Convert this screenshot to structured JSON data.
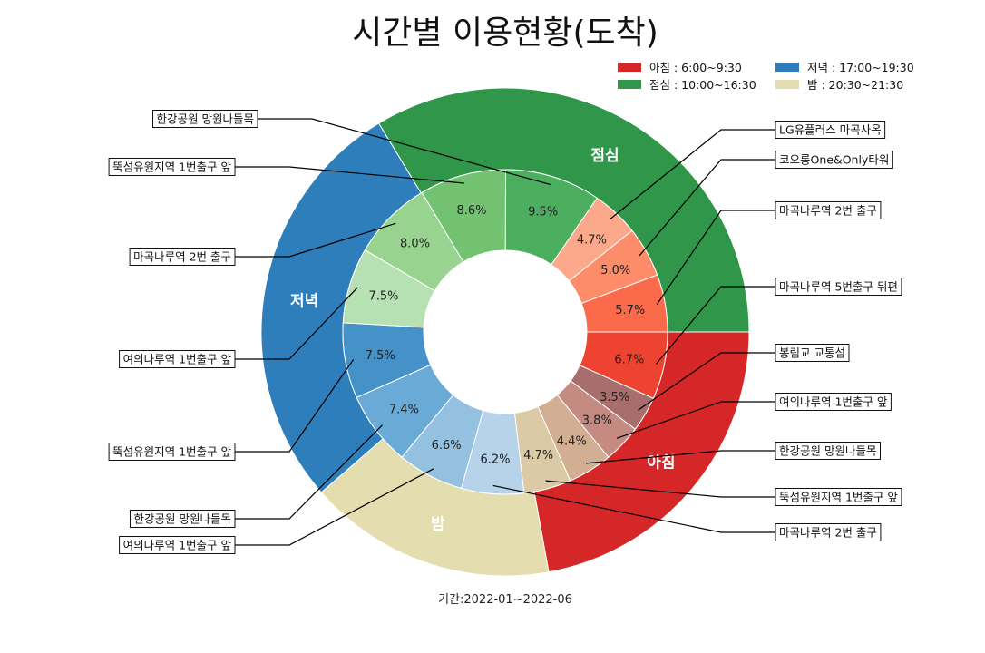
{
  "chart_data": {
    "type": "pie",
    "title": "시간별 이용현황(도착)",
    "period": "기간:2022-01~2022-06",
    "legend": [
      {
        "label": "아침 : 6:00~9:30",
        "color": "#d62728"
      },
      {
        "label": "저녁 : 17:00~19:30",
        "color": "#2f7ebc"
      },
      {
        "label": "점심 : 10:00~16:30",
        "color": "#2f964a"
      },
      {
        "label": "밤 : 20:30~21:30",
        "color": "#e3ddb0"
      }
    ],
    "outer": [
      {
        "name": "아침",
        "value": 22.1,
        "color": "#d62728"
      },
      {
        "name": "밤",
        "value": 16.4,
        "color": "#e3ddb0"
      },
      {
        "name": "저녁",
        "value": 27.7,
        "color": "#2f7ebc"
      },
      {
        "name": "점심",
        "value": 33.6,
        "color": "#2f964a"
      }
    ],
    "inner": [
      {
        "label": "마곡나루역 5번출구 뒤편",
        "value": 6.7,
        "text": "6.7%",
        "color": "#ef4332"
      },
      {
        "label": "봉림교 교통섬",
        "value": 3.5,
        "text": "3.5%",
        "color": "#a86d6d"
      },
      {
        "label": "여의나루역 1번출구 앞",
        "value": 3.8,
        "text": "3.8%",
        "color": "#c58b83"
      },
      {
        "label": "한강공원 망원나들목",
        "value": 4.4,
        "text": "4.4%",
        "color": "#d2ae93"
      },
      {
        "label": "뚝섬유원지역 1번출구 앞",
        "value": 4.7,
        "text": "4.7%",
        "color": "#dcc9a6"
      },
      {
        "label": "마곡나루역 2번 출구",
        "value": 6.2,
        "text": "6.2%",
        "color": "#b6d3ea"
      },
      {
        "label": "여의나루역 1번출구 앞",
        "value": 6.6,
        "text": "6.6%",
        "color": "#93c1df"
      },
      {
        "label": "한강공원 망원나들목",
        "value": 7.4,
        "text": "7.4%",
        "color": "#69aad6"
      },
      {
        "label": "뚝섬유원지역 1번출구 앞",
        "value": 7.5,
        "text": "7.5%",
        "color": "#4592c9"
      },
      {
        "label": "여의나루역 1번출구 앞",
        "value": 7.5,
        "text": "7.5%",
        "color": "#b6e1b2"
      },
      {
        "label": "마곡나루역 2번 출구",
        "value": 8.0,
        "text": "8.0%",
        "color": "#98d38f"
      },
      {
        "label": "뚝섬유원지역 1번출구 앞",
        "value": 8.6,
        "text": "8.6%",
        "color": "#72c272"
      },
      {
        "label": "한강공원 망원나들목",
        "value": 9.5,
        "text": "9.5%",
        "color": "#4cae5f"
      },
      {
        "label": "LG유플러스 마곡사옥",
        "value": 4.7,
        "text": "4.7%",
        "color": "#fca88a"
      },
      {
        "label": "코오롱One&Only타워",
        "value": 5.0,
        "text": "5.0%",
        "color": "#fc8c6a"
      },
      {
        "label": "마곡나루역 2번 출구",
        "value": 5.7,
        "text": "5.7%",
        "color": "#fb6a4a"
      }
    ]
  }
}
